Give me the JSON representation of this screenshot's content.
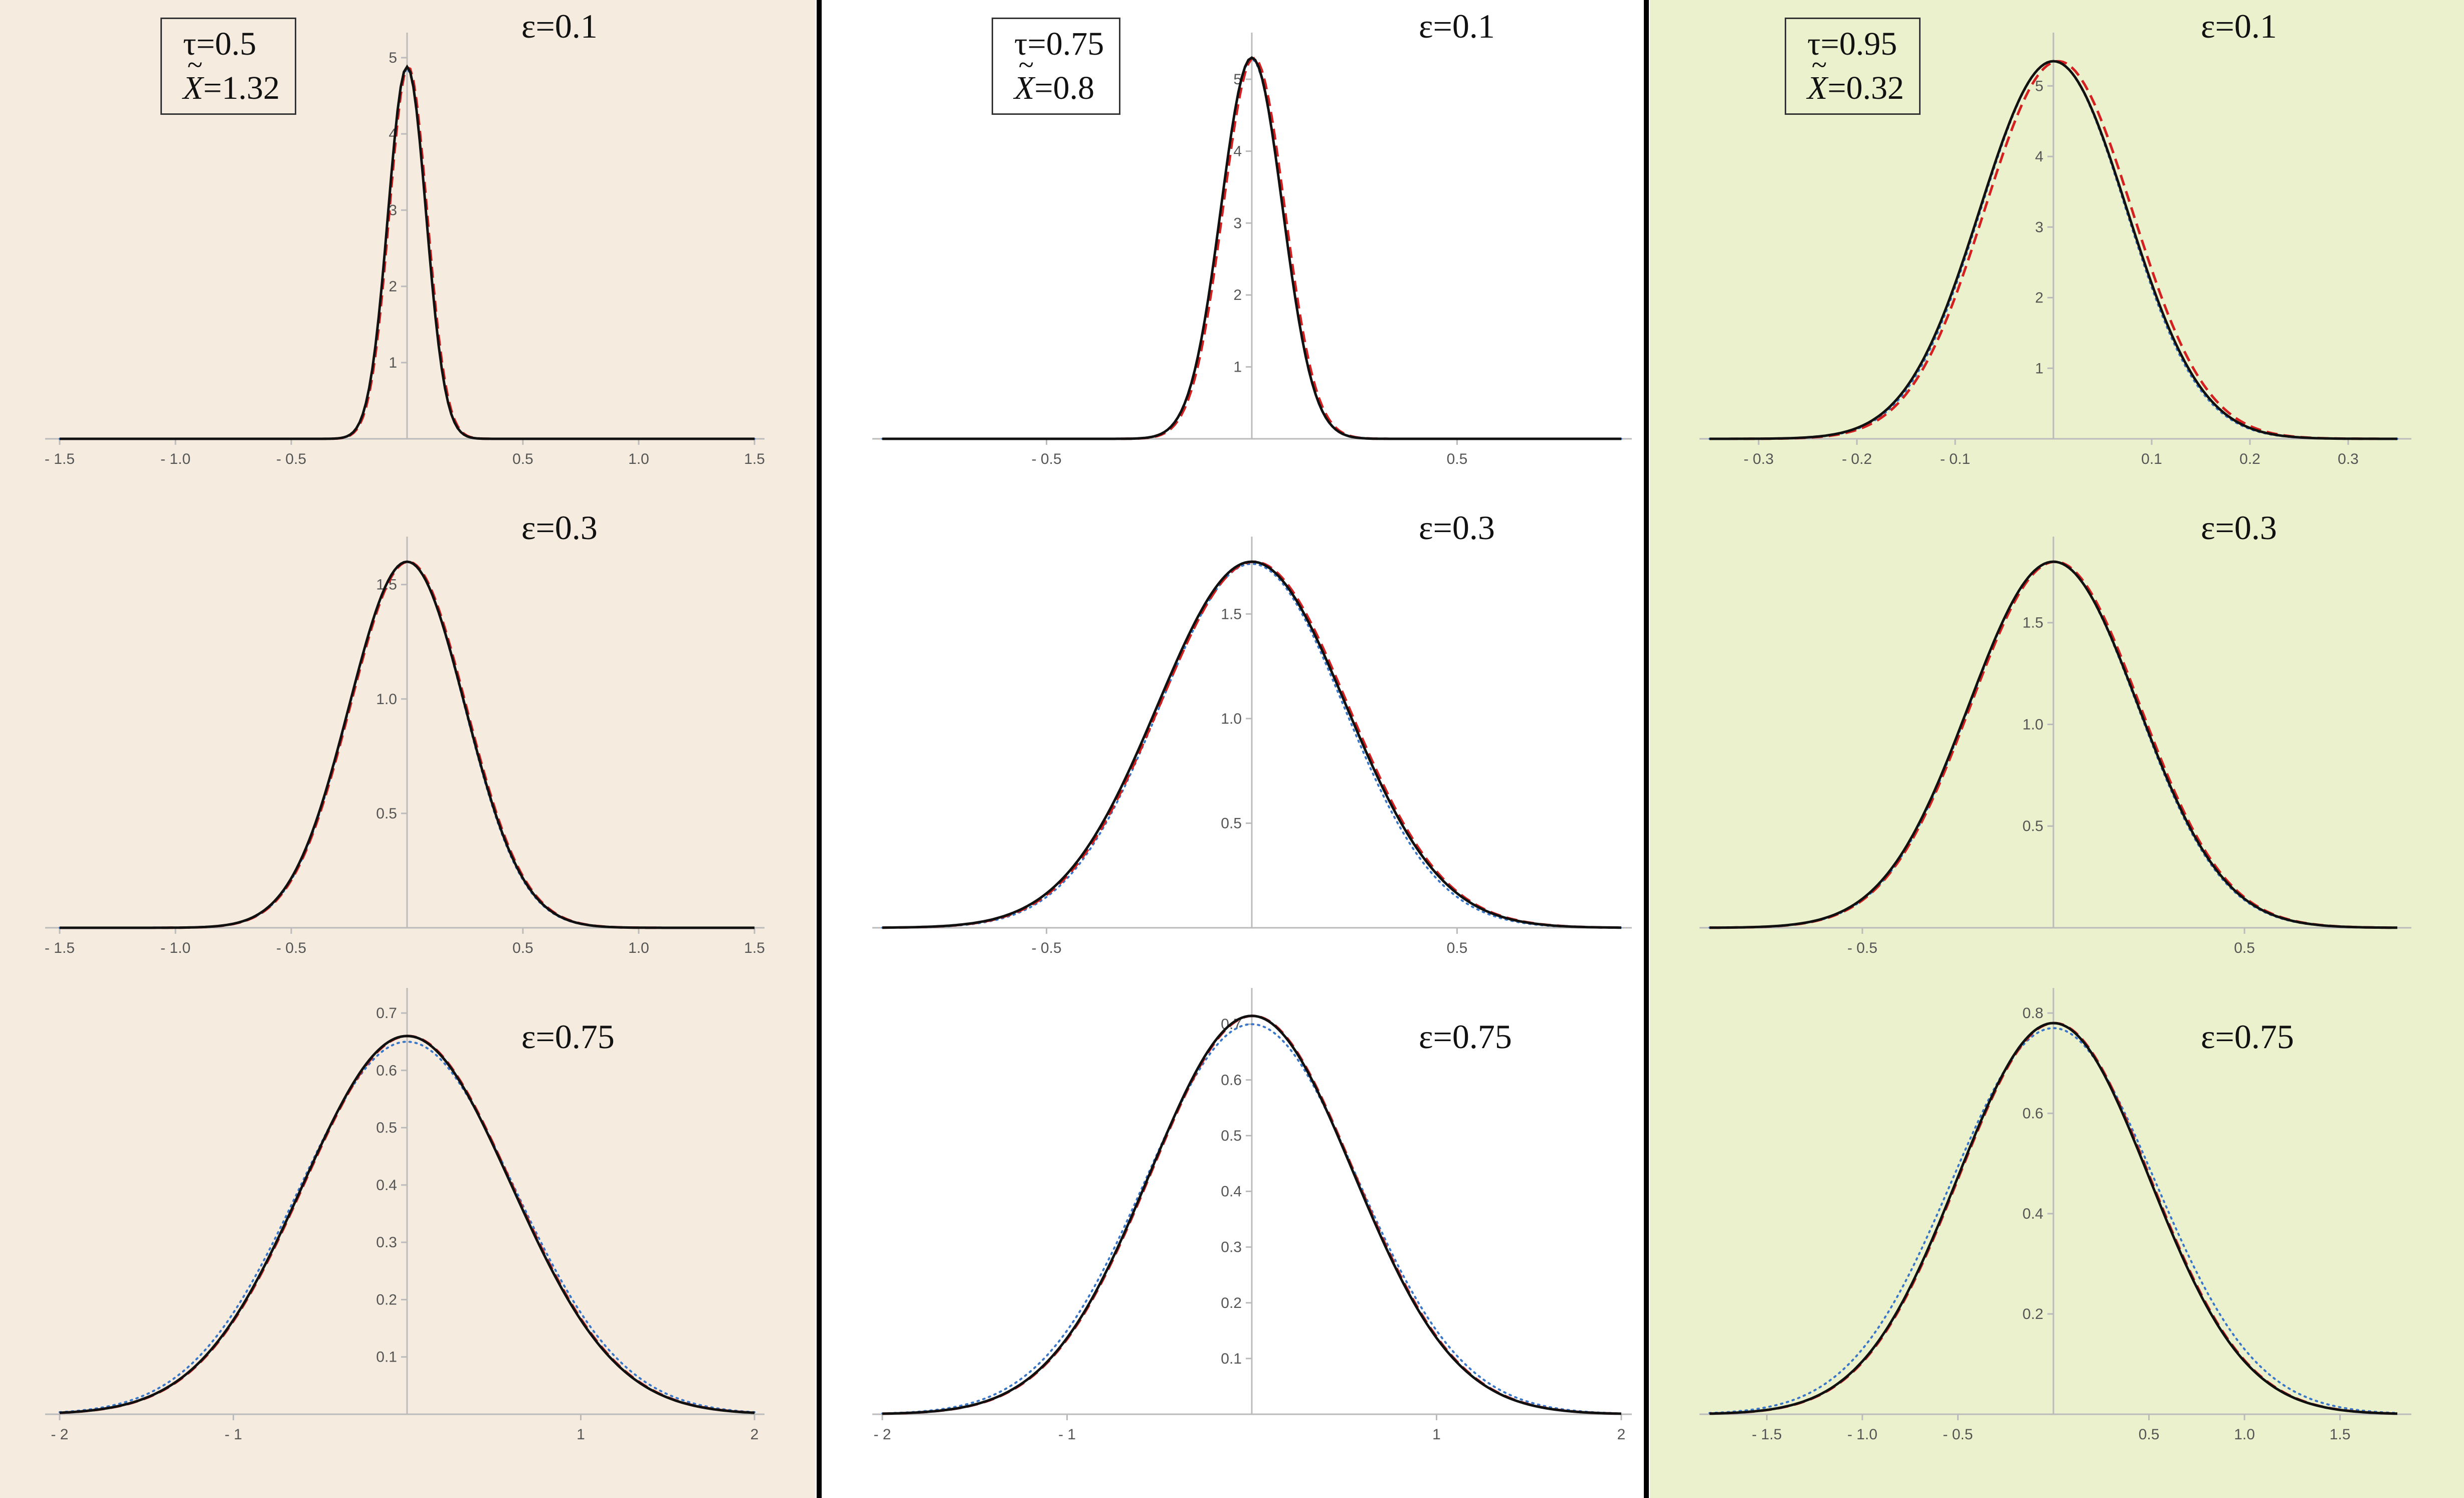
{
  "figure": {
    "columns": [
      {
        "tau_text": "τ=0.5",
        "x_prefix": "X",
        "x_tilde": "~",
        "x_value": "=1.32"
      },
      {
        "tau_text": "τ=0.75",
        "x_prefix": "X",
        "x_tilde": "~",
        "x_value": "=0.8"
      },
      {
        "tau_text": "τ=0.95",
        "x_prefix": "X",
        "x_tilde": "~",
        "x_value": "=0.32"
      }
    ],
    "colors": {
      "curve_solid": "#111111",
      "curve_red_dashed": "#d42020",
      "curve_blue_dotted": "#3a77c8",
      "axis": "#bbbbbb"
    }
  },
  "chart_data": [
    {
      "type": "line",
      "column": 0,
      "row": 0,
      "annotation": "ε=0.1",
      "xlim": [
        -1.5,
        1.5
      ],
      "ylim": [
        0,
        5
      ],
      "xticks": [
        "- 1.5",
        "- 1.0",
        "- 0.5",
        "0.5",
        "1.0",
        "1.5"
      ],
      "xtick_values": [
        -1.5,
        -1.0,
        -0.5,
        0.5,
        1.0,
        1.5
      ],
      "yticks": [
        "1",
        "2",
        "3",
        "4",
        "5"
      ],
      "ytick_values": [
        1,
        2,
        3,
        4,
        5
      ],
      "series_peak": 4.88,
      "series_sigma": 0.082,
      "reference_peak": 4.86,
      "reference_sigma": 0.082
    },
    {
      "type": "line",
      "column": 1,
      "row": 0,
      "annotation": "ε=0.1",
      "xlim": [
        -0.9,
        0.9
      ],
      "ylim": [
        0,
        5.3
      ],
      "xticks": [
        "- 0.5",
        "0.5"
      ],
      "xtick_values": [
        -0.5,
        0.5
      ],
      "yticks": [
        "1",
        "2",
        "3",
        "4",
        "5"
      ],
      "ytick_values": [
        1,
        2,
        3,
        4,
        5
      ],
      "series_peak": 5.3,
      "series_sigma": 0.075,
      "reference_peak": 5.28,
      "reference_sigma": 0.075
    },
    {
      "type": "line",
      "column": 2,
      "row": 0,
      "annotation": "ε=0.1",
      "xlim": [
        -0.35,
        0.35
      ],
      "ylim": [
        0,
        5.4
      ],
      "xticks": [
        "- 0.3",
        "- 0.2",
        "- 0.1",
        "0.1",
        "0.2",
        "0.3"
      ],
      "xtick_values": [
        -0.3,
        -0.2,
        -0.1,
        0.1,
        0.2,
        0.3
      ],
      "yticks": [
        "1",
        "2",
        "3",
        "4",
        "5"
      ],
      "ytick_values": [
        1,
        2,
        3,
        4,
        5
      ],
      "series_peak": 5.35,
      "series_sigma": 0.075,
      "reference_peak": 5.35,
      "reference_sigma": 0.074
    },
    {
      "type": "line",
      "column": 0,
      "row": 1,
      "annotation": "ε=0.3",
      "xlim": [
        -1.5,
        1.5
      ],
      "ylim": [
        0,
        1.6
      ],
      "xticks": [
        "- 1.5",
        "- 1.0",
        "- 0.5",
        "0.5",
        "1.0",
        "1.5"
      ],
      "xtick_values": [
        -1.5,
        -1.0,
        -0.5,
        0.5,
        1.0,
        1.5
      ],
      "yticks": [
        "0.5",
        "1.0",
        "1.5"
      ],
      "ytick_values": [
        0.5,
        1.0,
        1.5
      ],
      "series_peak": 1.6,
      "series_sigma": 0.25,
      "reference_peak": 1.6,
      "reference_sigma": 0.248
    },
    {
      "type": "line",
      "column": 1,
      "row": 1,
      "annotation": "ε=0.3",
      "xlim": [
        -0.9,
        0.9
      ],
      "ylim": [
        0,
        1.75
      ],
      "xticks": [
        "- 0.5",
        "0.5"
      ],
      "xtick_values": [
        -0.5,
        0.5
      ],
      "yticks": [
        "0.5",
        "1.0",
        "1.5"
      ],
      "ytick_values": [
        0.5,
        1.0,
        1.5
      ],
      "series_peak": 1.75,
      "series_sigma": 0.23,
      "reference_peak": 1.74,
      "reference_sigma": 0.225
    },
    {
      "type": "line",
      "column": 2,
      "row": 1,
      "annotation": "ε=0.3",
      "xlim": [
        -0.9,
        0.9
      ],
      "ylim": [
        0,
        1.8
      ],
      "xticks": [
        "- 0.5",
        "0.5"
      ],
      "xtick_values": [
        -0.5,
        0.5
      ],
      "yticks": [
        "0.5",
        "1.0",
        "1.5"
      ],
      "ytick_values": [
        0.5,
        1.0,
        1.5
      ],
      "series_peak": 1.8,
      "series_sigma": 0.222,
      "reference_peak": 1.8,
      "reference_sigma": 0.22
    },
    {
      "type": "line",
      "column": 0,
      "row": 2,
      "annotation": "ε=0.75",
      "xlim": [
        -2,
        2
      ],
      "ylim": [
        0,
        0.7
      ],
      "xticks": [
        "- 2",
        "- 1",
        "1",
        "2"
      ],
      "xtick_values": [
        -2,
        -1,
        1,
        2
      ],
      "yticks": [
        "0.1",
        "0.2",
        "0.3",
        "0.4",
        "0.5",
        "0.6",
        "0.7"
      ],
      "ytick_values": [
        0.1,
        0.2,
        0.3,
        0.4,
        0.5,
        0.6,
        0.7
      ],
      "series_peak": 0.66,
      "series_sigma": 0.6,
      "reference_peak": 0.65,
      "reference_sigma": 0.62
    },
    {
      "type": "line",
      "column": 1,
      "row": 2,
      "annotation": "ε=0.75",
      "xlim": [
        -2,
        2
      ],
      "ylim": [
        0,
        0.72
      ],
      "xticks": [
        "- 2",
        "- 1",
        "1",
        "2"
      ],
      "xtick_values": [
        -2,
        -1,
        1,
        2
      ],
      "yticks": [
        "0.1",
        "0.2",
        "0.3",
        "0.4",
        "0.5",
        "0.6",
        "0.7"
      ],
      "ytick_values": [
        0.1,
        0.2,
        0.3,
        0.4,
        0.5,
        0.6,
        0.7
      ],
      "series_peak": 0.715,
      "series_sigma": 0.55,
      "reference_peak": 0.7,
      "reference_sigma": 0.57
    },
    {
      "type": "line",
      "column": 2,
      "row": 2,
      "annotation": "ε=0.75",
      "xlim": [
        -1.8,
        1.8
      ],
      "ylim": [
        0,
        0.8
      ],
      "xticks": [
        "- 1.5",
        "- 1.0",
        "- 0.5",
        "0.5",
        "1.0",
        "1.5"
      ],
      "xtick_values": [
        -1.5,
        -1.0,
        -0.5,
        0.5,
        1.0,
        1.5
      ],
      "yticks": [
        "0.2",
        "0.4",
        "0.6",
        "0.8"
      ],
      "ytick_values": [
        0.2,
        0.4,
        0.6,
        0.8
      ],
      "series_peak": 0.78,
      "series_sigma": 0.5,
      "reference_peak": 0.77,
      "reference_sigma": 0.53
    }
  ]
}
